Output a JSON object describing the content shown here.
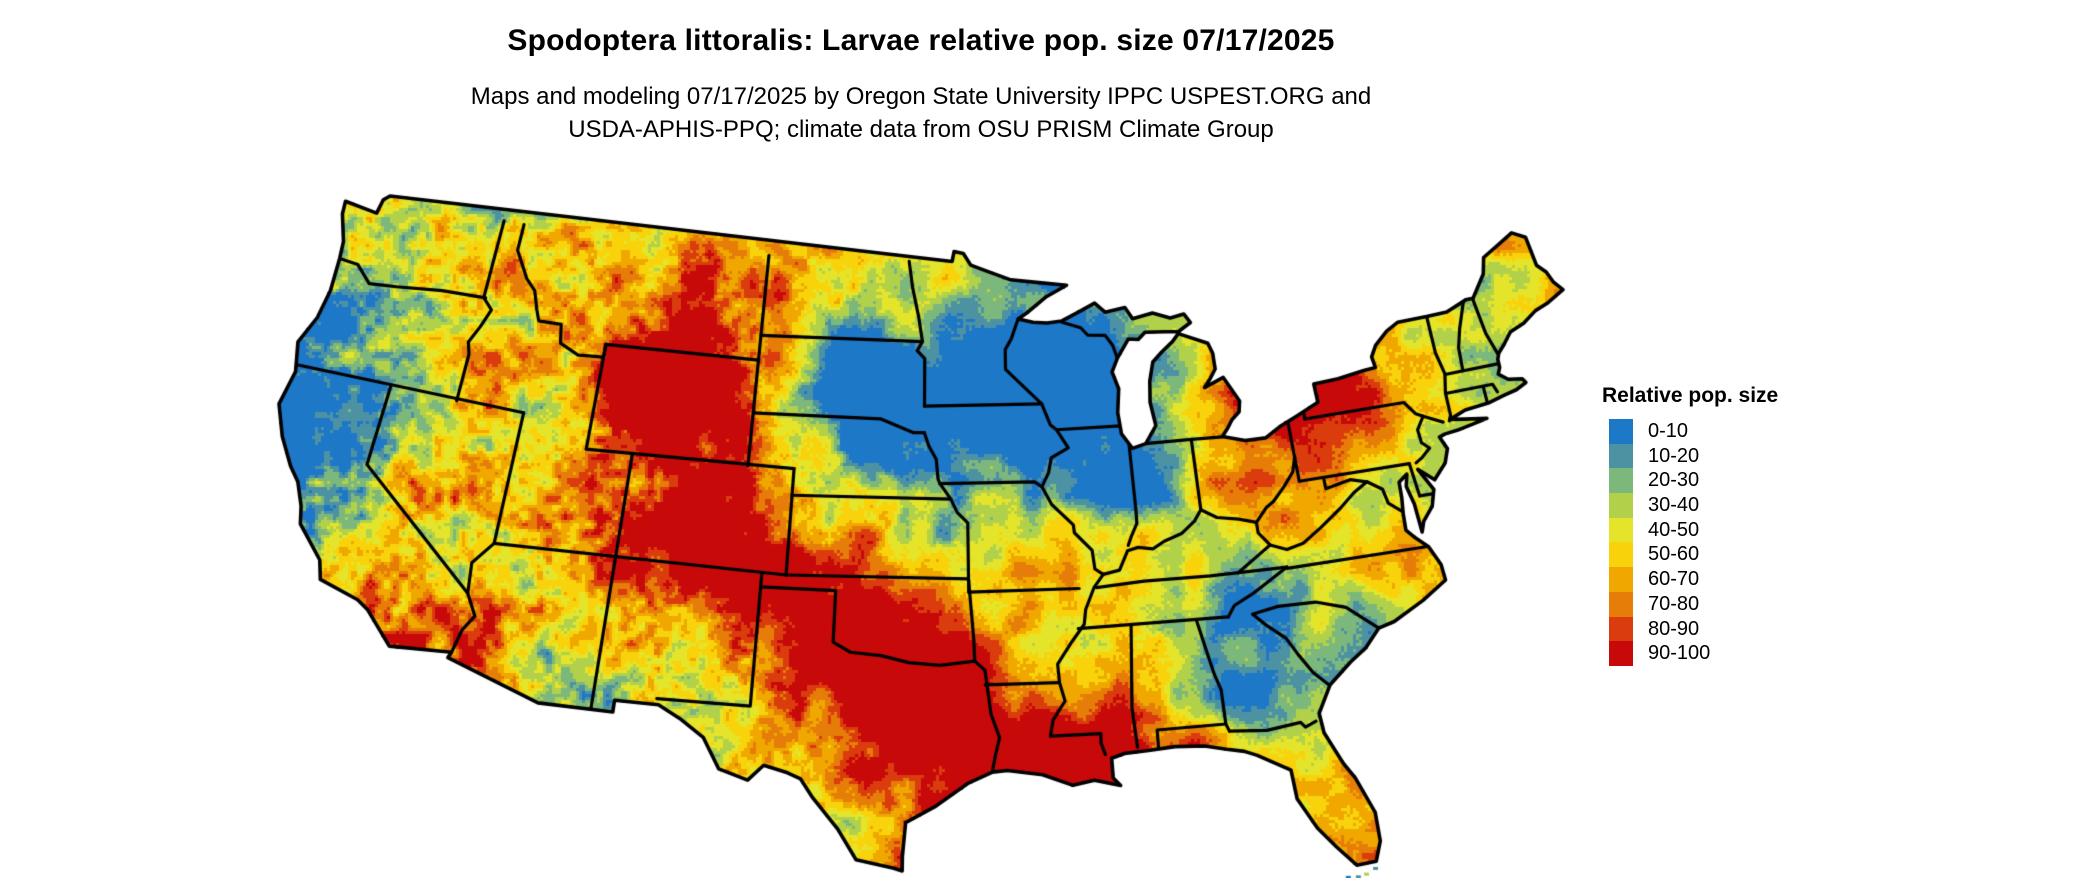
{
  "header": {
    "title": "Spodoptera littoralis: Larvae relative pop. size 07/17/2025",
    "subtitle_line1": "Maps and modeling 07/17/2025 by Oregon State University IPPC USPEST.ORG and",
    "subtitle_line2": "USDA-APHIS-PPQ; climate data from OSU PRISM Climate Group"
  },
  "legend": {
    "title": "Relative pop. size",
    "entries": [
      {
        "label": "0-10",
        "color": "#1d78c8"
      },
      {
        "label": "10-20",
        "color": "#4d92a3"
      },
      {
        "label": "20-30",
        "color": "#7cb87b"
      },
      {
        "label": "30-40",
        "color": "#b2d14b"
      },
      {
        "label": "40-50",
        "color": "#e4e52a"
      },
      {
        "label": "50-60",
        "color": "#f8d30b"
      },
      {
        "label": "60-70",
        "color": "#f0a800"
      },
      {
        "label": "70-80",
        "color": "#e67d08"
      },
      {
        "label": "80-90",
        "color": "#da3c0d"
      },
      {
        "label": "90-100",
        "color": "#c80909"
      }
    ]
  },
  "map": {
    "description": "Pixelated relative population size raster over the contiguous United States with black state boundaries",
    "boundary_color": "#000000",
    "water_color": "#ffffff"
  }
}
